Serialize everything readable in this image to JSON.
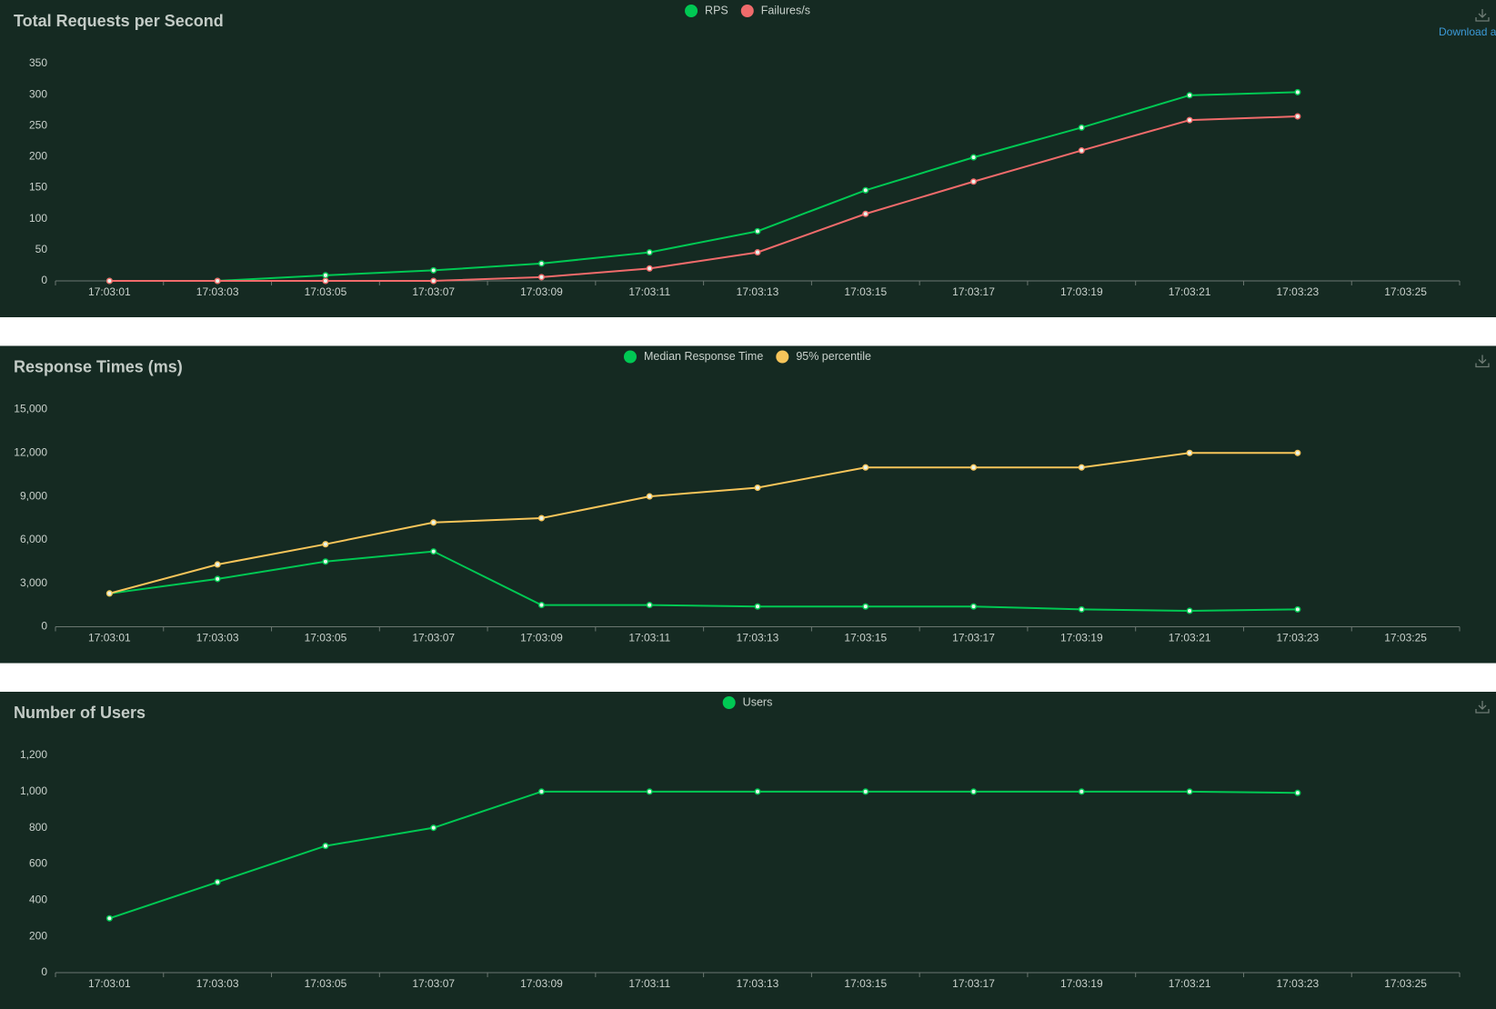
{
  "download_label": "Download a",
  "chart_data": [
    {
      "type": "line",
      "title": "Total Requests per Second",
      "categories": [
        "17:03:01",
        "17:03:03",
        "17:03:05",
        "17:03:07",
        "17:03:09",
        "17:03:11",
        "17:03:13",
        "17:03:15",
        "17:03:17",
        "17:03:19",
        "17:03:21",
        "17:03:23",
        "17:03:25"
      ],
      "series": [
        {
          "name": "RPS",
          "color": "#00c853",
          "values": [
            0,
            0,
            9,
            17,
            28,
            46,
            80,
            146,
            199,
            247,
            299,
            304,
            null
          ]
        },
        {
          "name": "Failures/s",
          "color": "#f06b6b",
          "values": [
            0,
            0,
            0,
            0,
            6,
            20,
            46,
            108,
            160,
            210,
            259,
            265,
            null
          ]
        }
      ],
      "ylim": [
        0,
        350
      ],
      "yticks": [
        0,
        50,
        100,
        150,
        200,
        250,
        300,
        350
      ]
    },
    {
      "type": "line",
      "title": "Response Times (ms)",
      "categories": [
        "17:03:01",
        "17:03:03",
        "17:03:05",
        "17:03:07",
        "17:03:09",
        "17:03:11",
        "17:03:13",
        "17:03:15",
        "17:03:17",
        "17:03:19",
        "17:03:21",
        "17:03:23",
        "17:03:25"
      ],
      "series": [
        {
          "name": "Median Response Time",
          "color": "#00c853",
          "values": [
            2300,
            3300,
            4500,
            5200,
            1500,
            1500,
            1400,
            1400,
            1400,
            1200,
            1100,
            1200,
            null
          ]
        },
        {
          "name": "95% percentile",
          "color": "#f7c55a",
          "values": [
            2300,
            4300,
            5700,
            7200,
            7500,
            9000,
            9600,
            11000,
            11000,
            11000,
            12000,
            12000,
            null
          ]
        }
      ],
      "ylim": [
        0,
        15000
      ],
      "yticks": [
        0,
        {
          "value": 3000,
          "label": "3,000"
        },
        {
          "value": 6000,
          "label": "6,000"
        },
        {
          "value": 9000,
          "label": "9,000"
        },
        {
          "value": 12000,
          "label": "12,000"
        },
        {
          "value": 15000,
          "label": "15,000"
        }
      ]
    },
    {
      "type": "line",
      "title": "Number of Users",
      "categories": [
        "17:03:01",
        "17:03:03",
        "17:03:05",
        "17:03:07",
        "17:03:09",
        "17:03:11",
        "17:03:13",
        "17:03:15",
        "17:03:17",
        "17:03:19",
        "17:03:21",
        "17:03:23",
        "17:03:25"
      ],
      "series": [
        {
          "name": "Users",
          "color": "#00c853",
          "values": [
            300,
            500,
            700,
            800,
            1000,
            1000,
            1000,
            1000,
            1000,
            1000,
            1000,
            993,
            null
          ]
        }
      ],
      "ylim": [
        0,
        1200
      ],
      "yticks": [
        0,
        200,
        400,
        600,
        800,
        {
          "value": 1000,
          "label": "1,000"
        },
        {
          "value": 1200,
          "label": "1,200"
        }
      ]
    }
  ]
}
